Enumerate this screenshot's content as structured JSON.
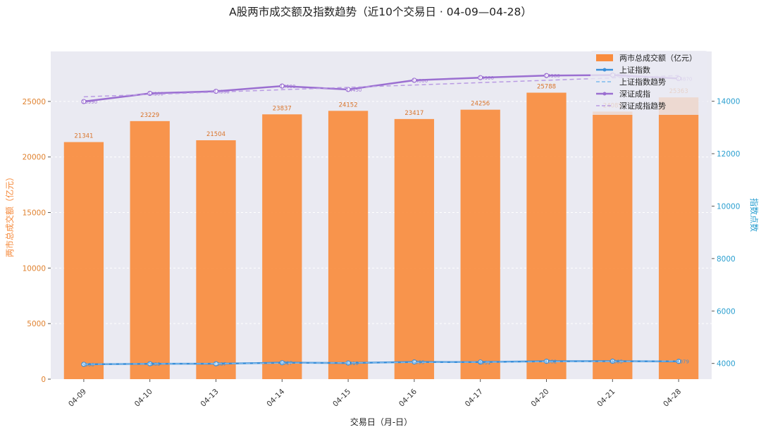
{
  "chart_data": {
    "type": "bar",
    "title": "A股两市成交额及指数趋势（近10个交易日 · 04-09—04-28）",
    "xlabel": "交易日（月-日）",
    "ylabel_left": "两市总成交额（亿元）",
    "ylabel_right": "指数点数",
    "categories": [
      "04-09",
      "04-10",
      "04-13",
      "04-14",
      "04-15",
      "04-16",
      "04-17",
      "04-20",
      "04-21",
      "04-28"
    ],
    "ylim_left": [
      0,
      29500
    ],
    "ylim_right": [
      3400,
      15900
    ],
    "yticks_left": [
      "0",
      "5000",
      "10000",
      "15000",
      "20000",
      "25000"
    ],
    "yticks_right": [
      "4000",
      "6000",
      "8000",
      "10000",
      "12000",
      "14000"
    ],
    "grid": true,
    "legend_position": "top-right",
    "series": [
      {
        "name": "两市总成交额（亿元）",
        "kind": "bar",
        "axis": "left",
        "color": "#F98C3E",
        "values": [
          21341,
          23229,
          21504,
          23837,
          24152,
          23417,
          24256,
          25788,
          24085,
          25363
        ],
        "labels": [
          "21341",
          "23229",
          "21504",
          "23837",
          "24152",
          "23417",
          "24256",
          "25788",
          "24085",
          "25363"
        ]
      },
      {
        "name": "上证指数",
        "kind": "line",
        "axis": "right",
        "color": "#3A8FD9",
        "values": [
          3966,
          3986,
          3987,
          4027,
          4015,
          4055,
          4051,
          4082,
          4085,
          4079
        ],
        "labels": [
          "3966",
          "3986",
          "3987",
          "4027",
          "4015",
          "4055",
          "4051",
          "4082",
          "4085",
          "4079"
        ]
      },
      {
        "name": "上证指数趋势",
        "kind": "trend",
        "axis": "right",
        "color": "#7DB9EE",
        "values": [
          3970,
          3983,
          3995,
          4010,
          4023,
          4037,
          4050,
          4063,
          4076,
          4090
        ]
      },
      {
        "name": "深证成指",
        "kind": "line",
        "axis": "right",
        "color": "#9B6FD1",
        "values": [
          13990,
          14300,
          14380,
          14580,
          14450,
          14800,
          14900,
          14980,
          15000,
          14870
        ],
        "labels": [
          "13990",
          "14300",
          "14380",
          "14580",
          "14450",
          "14800",
          "14900",
          "14980",
          "15000",
          "14870"
        ]
      },
      {
        "name": "深证成指趋势",
        "kind": "trend",
        "axis": "right",
        "color": "#B99BE3",
        "values": [
          14170,
          14260,
          14350,
          14440,
          14530,
          14620,
          14710,
          14800,
          14890,
          14980
        ]
      }
    ]
  }
}
